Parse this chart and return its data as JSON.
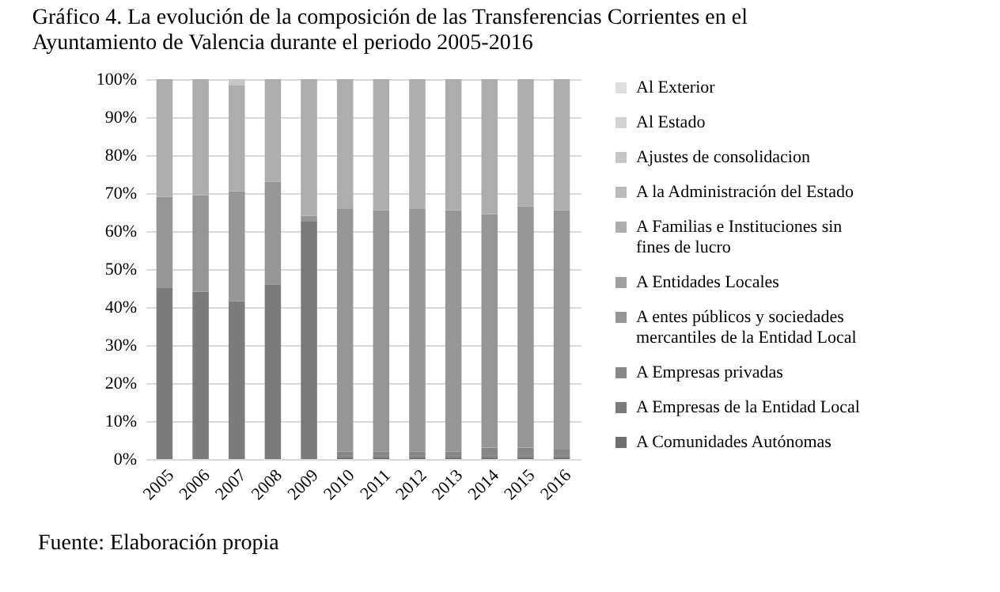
{
  "chart_data": {
    "type": "bar",
    "stacked": true,
    "title": "Gráfico 4. La evolución de la composición de las Transferencias Corrientes en el Ayuntamiento de Valencia durante el periodo 2005-2016",
    "categories": [
      "2005",
      "2006",
      "2007",
      "2008",
      "2009",
      "2010",
      "2011",
      "2012",
      "2013",
      "2014",
      "2015",
      "2016"
    ],
    "series": [
      {
        "name": "A Comunidades Autónomas",
        "color": "#6e6e6e",
        "values": [
          0,
          0,
          0,
          0,
          0,
          0.5,
          0.5,
          0.5,
          0.5,
          0.5,
          0.5,
          0.5
        ]
      },
      {
        "name": "A Empresas de la Entidad Local",
        "color": "#7b7b7b",
        "values": [
          45,
          44,
          41.5,
          46,
          62.5,
          0.5,
          0.5,
          0.5,
          0.5,
          0.5,
          0.5,
          0.5
        ]
      },
      {
        "name": "A Empresas privadas",
        "color": "#878787",
        "values": [
          0,
          0,
          0,
          0,
          0,
          1,
          1,
          1,
          1,
          2,
          2,
          1.5
        ]
      },
      {
        "name": "A entes públicos y sociedades mercantiles de la Entidad Local",
        "color": "#969696",
        "values": [
          24,
          25.5,
          29,
          27,
          1.5,
          64,
          63.5,
          64,
          63.5,
          61.5,
          63.5,
          63
        ]
      },
      {
        "name": "A Entidades Locales",
        "color": "#a0a0a0",
        "values": [
          0,
          0,
          0,
          0,
          0,
          0,
          0,
          0,
          0,
          0,
          0,
          0
        ]
      },
      {
        "name": "A Familias e Instituciones sin fines de lucro",
        "color": "#adadad",
        "values": [
          31,
          30.5,
          28,
          27,
          36,
          34,
          34.5,
          34,
          34.5,
          35.5,
          33.5,
          34.5
        ]
      },
      {
        "name": "A la Administración del Estado",
        "color": "#bababa",
        "values": [
          0,
          0,
          0,
          0,
          0,
          0,
          0,
          0,
          0,
          0,
          0,
          0
        ]
      },
      {
        "name": "Ajustes de consolidacion",
        "color": "#c6c6c6",
        "values": [
          0,
          0,
          1.5,
          0,
          0,
          0,
          0,
          0,
          0,
          0,
          0,
          0
        ]
      },
      {
        "name": "Al Estado",
        "color": "#d2d2d2",
        "values": [
          0,
          0,
          0,
          0,
          0,
          0,
          0,
          0,
          0,
          0,
          0,
          0
        ]
      },
      {
        "name": "Al Exterior",
        "color": "#dedede",
        "values": [
          0,
          0,
          0,
          0,
          0,
          0,
          0,
          0,
          0,
          0,
          0,
          0
        ]
      }
    ],
    "ylim": [
      0,
      100
    ],
    "yticks": [
      {
        "value": 0,
        "label": "0%"
      },
      {
        "value": 10,
        "label": "10%"
      },
      {
        "value": 20,
        "label": "20%"
      },
      {
        "value": 30,
        "label": "30%"
      },
      {
        "value": 40,
        "label": "40%"
      },
      {
        "value": 50,
        "label": "50%"
      },
      {
        "value": 60,
        "label": "60%"
      },
      {
        "value": 70,
        "label": "70%"
      },
      {
        "value": 80,
        "label": "80%"
      },
      {
        "value": 90,
        "label": "90%"
      },
      {
        "value": 100,
        "label": "100%"
      }
    ],
    "grid": "y",
    "legend": "right",
    "annotations": [
      "Fuente: Elaboración propia"
    ]
  }
}
